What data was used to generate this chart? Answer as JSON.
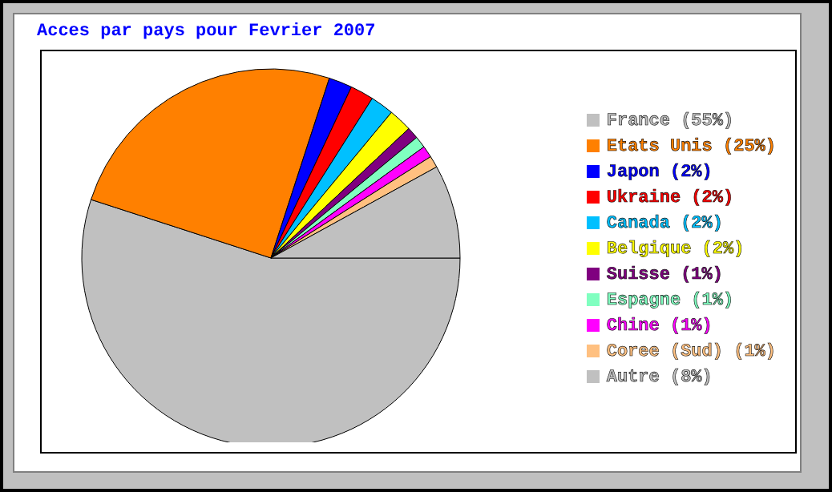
{
  "chart_data": {
    "type": "pie",
    "title": "Acces par pays pour Fevrier 2007",
    "categories": [
      "France (55%)",
      "Etats Unis (25%)",
      "Japon (2%)",
      "Ukraine (2%)",
      "Canada (2%)",
      "Belgique (2%)",
      "Suisse (1%)",
      "Espagne (1%)",
      "Chine (1%)",
      "Coree (Sud) (1%)",
      "Autre (8%)"
    ],
    "values": [
      55,
      25,
      2,
      2,
      2,
      2,
      1,
      1,
      1,
      1,
      8
    ],
    "colors": [
      "#c0c0c0",
      "#ff8000",
      "#0000ff",
      "#ff0000",
      "#00c0ff",
      "#ffff00",
      "#800080",
      "#80ffc0",
      "#ff00ff",
      "#ffc080",
      "#c0c0c0"
    ],
    "legend": "right"
  }
}
